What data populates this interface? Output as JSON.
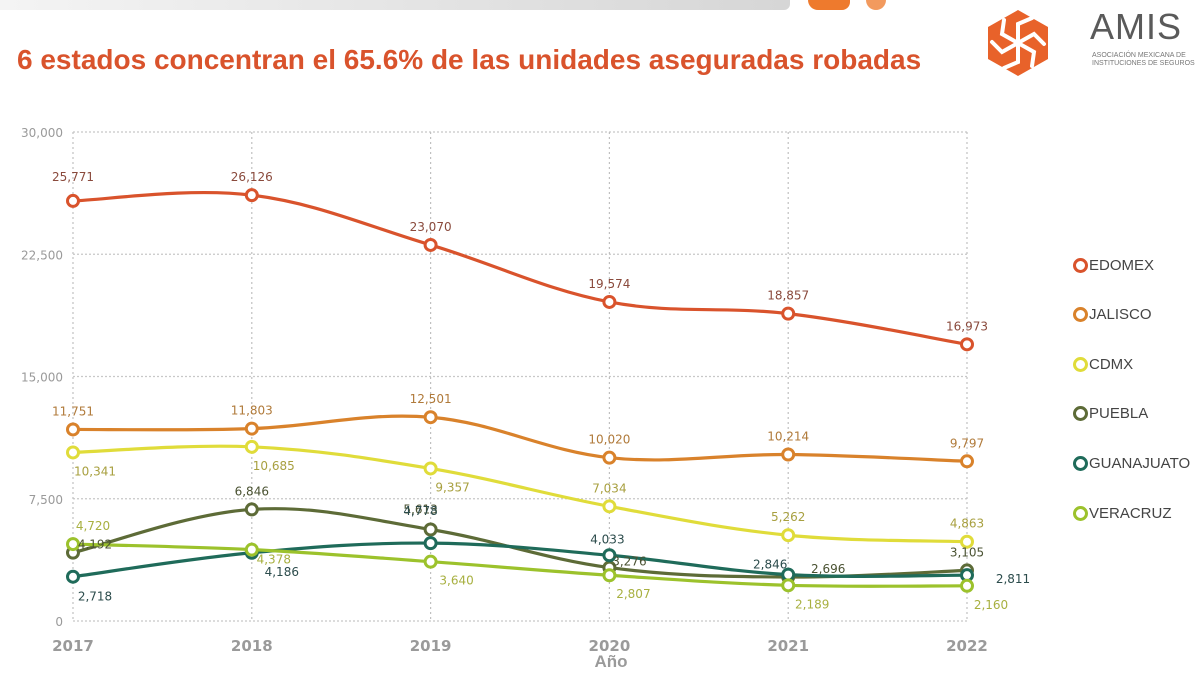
{
  "title": "6 estados concentran el 65.6% de las unidades aseguradas robadas",
  "logo": {
    "name": "AMIS",
    "subtitle_line1": "ASOCIACIÓN MEXICANA DE",
    "subtitle_line2": "INSTITUCIONES DE SEGUROS",
    "icon": "hexagon-pinwheel-logo-icon",
    "color": "#e8622a"
  },
  "chart_data": {
    "type": "line",
    "title": "6 estados concentran el 65.6% de las unidades aseguradas robadas",
    "xlabel": "Año",
    "ylabel": "",
    "x": [
      "2017",
      "2018",
      "2019",
      "2020",
      "2021",
      "2022"
    ],
    "ylim": [
      0,
      30000
    ],
    "yticks": [
      0,
      7500,
      15000,
      22500,
      30000
    ],
    "ytick_labels": [
      "0",
      "7,500",
      "15,000",
      "22,500",
      "30,000"
    ],
    "grid": "dotted",
    "legend_position": "right",
    "series": [
      {
        "name": "EDOMEX",
        "color": "#d9532c",
        "label_color": "#8a4a3c",
        "values": [
          25771,
          26126,
          23070,
          19574,
          18857,
          16973
        ],
        "labels": [
          "25,771",
          "26,126",
          "23,070",
          "19,574",
          "18,857",
          "16,973"
        ]
      },
      {
        "name": "JALISCO",
        "color": "#d9822b",
        "label_color": "#b07a3a",
        "values": [
          11751,
          11803,
          12501,
          10020,
          10214,
          9797
        ],
        "labels": [
          "11,751",
          "11,803",
          "12,501",
          "10,020",
          "10,214",
          "9,797"
        ]
      },
      {
        "name": "CDMX",
        "color": "#e0dc3a",
        "label_color": "#a8a040",
        "values": [
          10341,
          10685,
          9357,
          7034,
          5262,
          4863
        ],
        "labels": [
          "10,341",
          "10,685",
          "9,357",
          "7,034",
          "5,262",
          "4,863"
        ]
      },
      {
        "name": "PUEBLA",
        "color": "#5d6b37",
        "label_color": "#4a5232",
        "values": [
          4192,
          6846,
          5613,
          3276,
          2696,
          3105
        ],
        "labels": [
          "4,192",
          "6,846",
          "5,613",
          "3,276",
          "2,696",
          "3,105"
        ]
      },
      {
        "name": "GUANAJUATO",
        "color": "#1f6b5a",
        "label_color": "#2c4c4c",
        "values": [
          2718,
          4186,
          4778,
          4033,
          2846,
          2811
        ],
        "labels": [
          "2,718",
          "4,186",
          "4,778",
          "4,033",
          "2,846",
          "2,811"
        ]
      },
      {
        "name": "VERACRUZ",
        "color": "#9cc22c",
        "label_color": "#a8b040",
        "values": [
          4720,
          4378,
          3640,
          2807,
          2189,
          2160
        ],
        "labels": [
          "4,720",
          "4,378",
          "3,640",
          "2,807",
          "2,189",
          "2,160"
        ]
      }
    ]
  }
}
